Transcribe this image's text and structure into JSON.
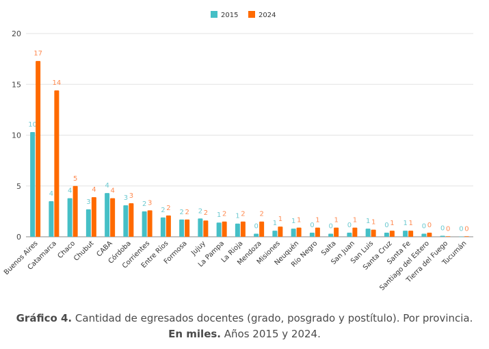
{
  "chart_data": {
    "type": "bar",
    "title": "",
    "xlabel": "",
    "ylabel": "",
    "ylim": [
      0,
      20
    ],
    "yticks": [
      0,
      5,
      10,
      15,
      20
    ],
    "grid": true,
    "legend_position": "top-center",
    "categories": [
      "Buenos Aires",
      "Catamarca",
      "Chaco",
      "Chubut",
      "CABA",
      "Córdoba",
      "Corrientes",
      "Entre Ríos",
      "Formosa",
      "Jujuy",
      "La Pampa",
      "La Rioja",
      "Mendoza",
      "Misiones",
      "Neuquén",
      "Río Negro",
      "Salta",
      "San Juan",
      "San Luis",
      "Santa Cruz",
      "Santa Fe",
      "Santiago del Estero",
      "Tierra del Fuego",
      "Tucumán"
    ],
    "series": [
      {
        "name": "2015",
        "color": "#45bfc6",
        "values": [
          10.3,
          3.5,
          3.8,
          2.7,
          4.3,
          3.1,
          2.5,
          1.9,
          1.7,
          1.8,
          1.4,
          1.3,
          0.3,
          0.6,
          0.8,
          0.4,
          0.3,
          0.4,
          0.8,
          0.4,
          0.6,
          0.3,
          0.1,
          0.02
        ],
        "labels": [
          "10",
          "4",
          "4",
          "3",
          "4",
          "3",
          "2",
          "2",
          "2",
          "2",
          "1",
          "1",
          "0",
          "1",
          "1",
          "0",
          "0",
          "0",
          "1",
          "0",
          "1",
          "0",
          "0",
          "0"
        ]
      },
      {
        "name": "2024",
        "color": "#ff6a00",
        "values": [
          17.3,
          14.4,
          5.0,
          3.9,
          3.8,
          3.3,
          2.6,
          2.1,
          1.7,
          1.6,
          1.5,
          1.5,
          1.5,
          1.0,
          0.9,
          0.9,
          0.9,
          0.9,
          0.7,
          0.6,
          0.6,
          0.4,
          0.05,
          0.05
        ],
        "labels": [
          "17",
          "14",
          "5",
          "4",
          "4",
          "3",
          "3",
          "2",
          "2",
          "2",
          "2",
          "2",
          "2",
          "1",
          "1",
          "1",
          "1",
          "1",
          "1",
          "1",
          "1",
          "0",
          "0",
          "0"
        ]
      }
    ]
  },
  "caption": {
    "label": "Gráfico 4.",
    "text": " Cantidad de egresados docentes (grado, posgrado y postítulo). Por provincia.",
    "unit": "En miles.",
    "years": " Años 2015 y 2024."
  }
}
